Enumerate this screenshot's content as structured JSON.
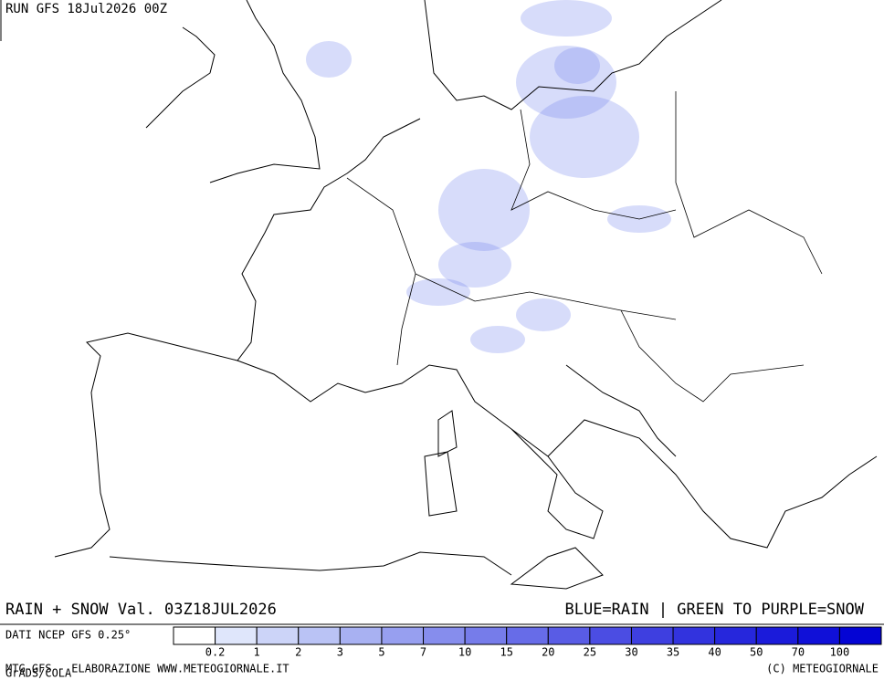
{
  "header": {
    "run": "RUN GFS 18Jul2026 00Z"
  },
  "footer": {
    "field": "RAIN + SNOW Val. 03Z18JUL2026",
    "key": "BLUE=RAIN | GREEN TO PURPLE=SNOW",
    "source": "DATI NCEP GFS 0.25°",
    "credit": "MTG-GFS - ELABORAZIONE WWW.METEOGIORNALE.IT",
    "grads": "GrADS/COLA",
    "copyright": "(C) METEOGIORNALE"
  },
  "legend": {
    "ticks": [
      0.2,
      1,
      2,
      3,
      5,
      7,
      10,
      15,
      20,
      25,
      30,
      35,
      40,
      50,
      70,
      100
    ],
    "colors": [
      "#ffffff",
      "#dfe6fb",
      "#ccd4f8",
      "#bac3f5",
      "#a8b1f2",
      "#979ff0",
      "#868ded",
      "#767cea",
      "#676ce8",
      "#595ce5",
      "#4b4de3",
      "#3e3fe0",
      "#3233de",
      "#2627dc",
      "#1b1bda",
      "#1010d8",
      "#0404d4"
    ]
  }
}
